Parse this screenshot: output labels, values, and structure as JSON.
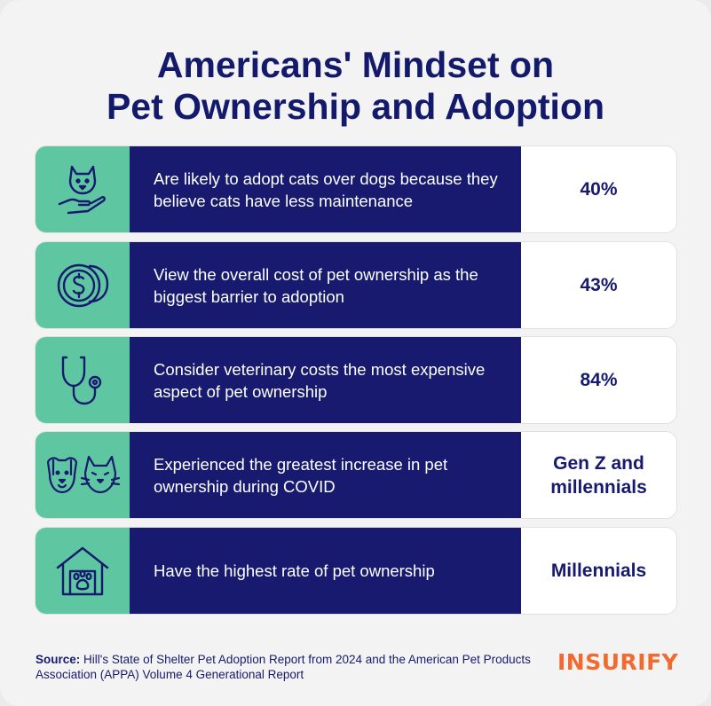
{
  "title": {
    "line1": "Americans' Mindset on",
    "line2": "Pet Ownership and Adoption"
  },
  "rows": [
    {
      "icon": "cat-in-hand-icon",
      "text": "Are likely to adopt cats over dogs because they believe cats have less maintenance",
      "value": "40%"
    },
    {
      "icon": "coins-dollar-icon",
      "text": "View the overall cost of pet ownership as the biggest barrier to adoption",
      "value": "43%"
    },
    {
      "icon": "stethoscope-icon",
      "text": "Consider veterinary costs the most expensive aspect of pet ownership",
      "value": "84%"
    },
    {
      "icon": "dog-and-cat-icon",
      "text": "Experienced the greatest increase in pet ownership during COVID",
      "value": "Gen Z and millennials"
    },
    {
      "icon": "pet-house-icon",
      "text": "Have the highest rate of pet ownership",
      "value": "Millennials"
    }
  ],
  "footer": {
    "source_label": "Source:",
    "source_text": "Hill's State of Shelter Pet Adoption Report from 2024 and the American Pet Products Association (APPA) Volume 4 Generational Report"
  },
  "logo": "INSURIFY",
  "colors": {
    "navy": "#171a6e",
    "green": "#5ec7a2",
    "orange": "#f26a2e",
    "background": "#f3f3f3"
  }
}
